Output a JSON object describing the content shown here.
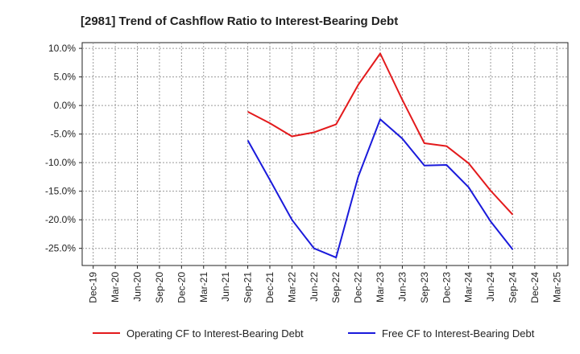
{
  "chart_data": {
    "type": "line",
    "title": "[2981]  Trend of Cashflow Ratio to Interest-Bearing Debt",
    "xlabel": "",
    "ylabel": "",
    "x": [
      "Dec-19",
      "Mar-20",
      "Jun-20",
      "Sep-20",
      "Dec-20",
      "Mar-21",
      "Jun-21",
      "Sep-21",
      "Dec-21",
      "Mar-22",
      "Jun-22",
      "Sep-22",
      "Dec-22",
      "Mar-23",
      "Jun-23",
      "Sep-23",
      "Dec-23",
      "Mar-24",
      "Jun-24",
      "Sep-24",
      "Dec-24",
      "Mar-25"
    ],
    "ylim": [
      -28,
      11
    ],
    "yticks": [
      10,
      5,
      0,
      -5,
      -10,
      -15,
      -20,
      -25
    ],
    "ytick_labels": [
      "10.0%",
      "5.0%",
      "0.0%",
      "-5.0%",
      "-10.0%",
      "-15.0%",
      "-20.0%",
      "-25.0%"
    ],
    "grid": true,
    "legend_position": "bottom",
    "series": [
      {
        "name": "Operating CF to Interest-Bearing Debt",
        "color": "#e31a1c",
        "values": [
          null,
          null,
          null,
          null,
          null,
          null,
          null,
          -1.1,
          -3.1,
          -5.4,
          -4.7,
          -3.3,
          3.6,
          9.1,
          1.0,
          -6.6,
          -7.1,
          -10.1,
          -14.9,
          -19.1,
          null,
          null
        ]
      },
      {
        "name": "Free CF to Interest-Bearing Debt",
        "color": "#1a1adb",
        "values": [
          null,
          null,
          null,
          null,
          null,
          null,
          null,
          -6.1,
          -13.0,
          -20.0,
          -25.0,
          -26.6,
          -12.5,
          -2.4,
          -5.8,
          -10.5,
          -10.4,
          -14.3,
          -20.3,
          -25.2,
          null,
          null
        ]
      }
    ]
  }
}
